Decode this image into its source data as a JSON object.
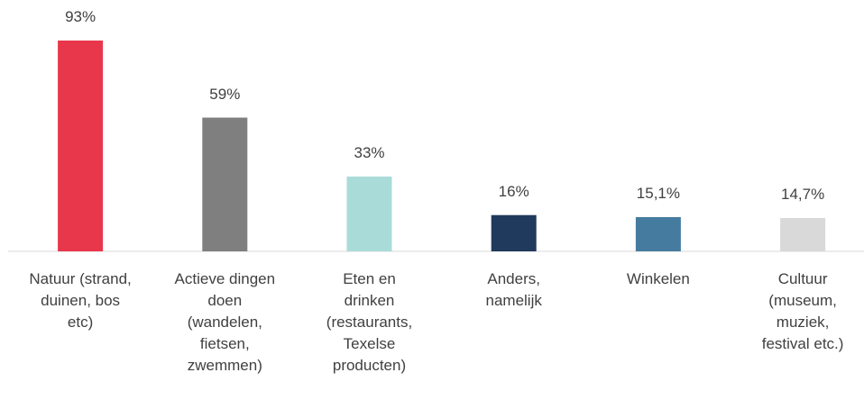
{
  "chart_data": {
    "type": "bar",
    "categories": [
      "Natuur (strand,\nduinen, bos\netc)",
      "Actieve dingen\ndoen\n(wandelen,\nfietsen,\nzwemmen)",
      "Eten en\ndrinken\n(restaurants,\nTexelse\nproducten)",
      "Anders,\nnamelijk",
      "Winkelen",
      "Cultuur\n(museum,\nmuziek,\nfestival etc.)"
    ],
    "values": [
      93,
      59,
      33,
      16,
      15.1,
      14.7
    ],
    "value_labels": [
      "93%",
      "59%",
      "33%",
      "16%",
      "15,1%",
      "14,7%"
    ],
    "colors": [
      "#e8374a",
      "#7f7f7f",
      "#a9dcd9",
      "#1f3a5c",
      "#467ba0",
      "#d9d9d9"
    ]
  }
}
